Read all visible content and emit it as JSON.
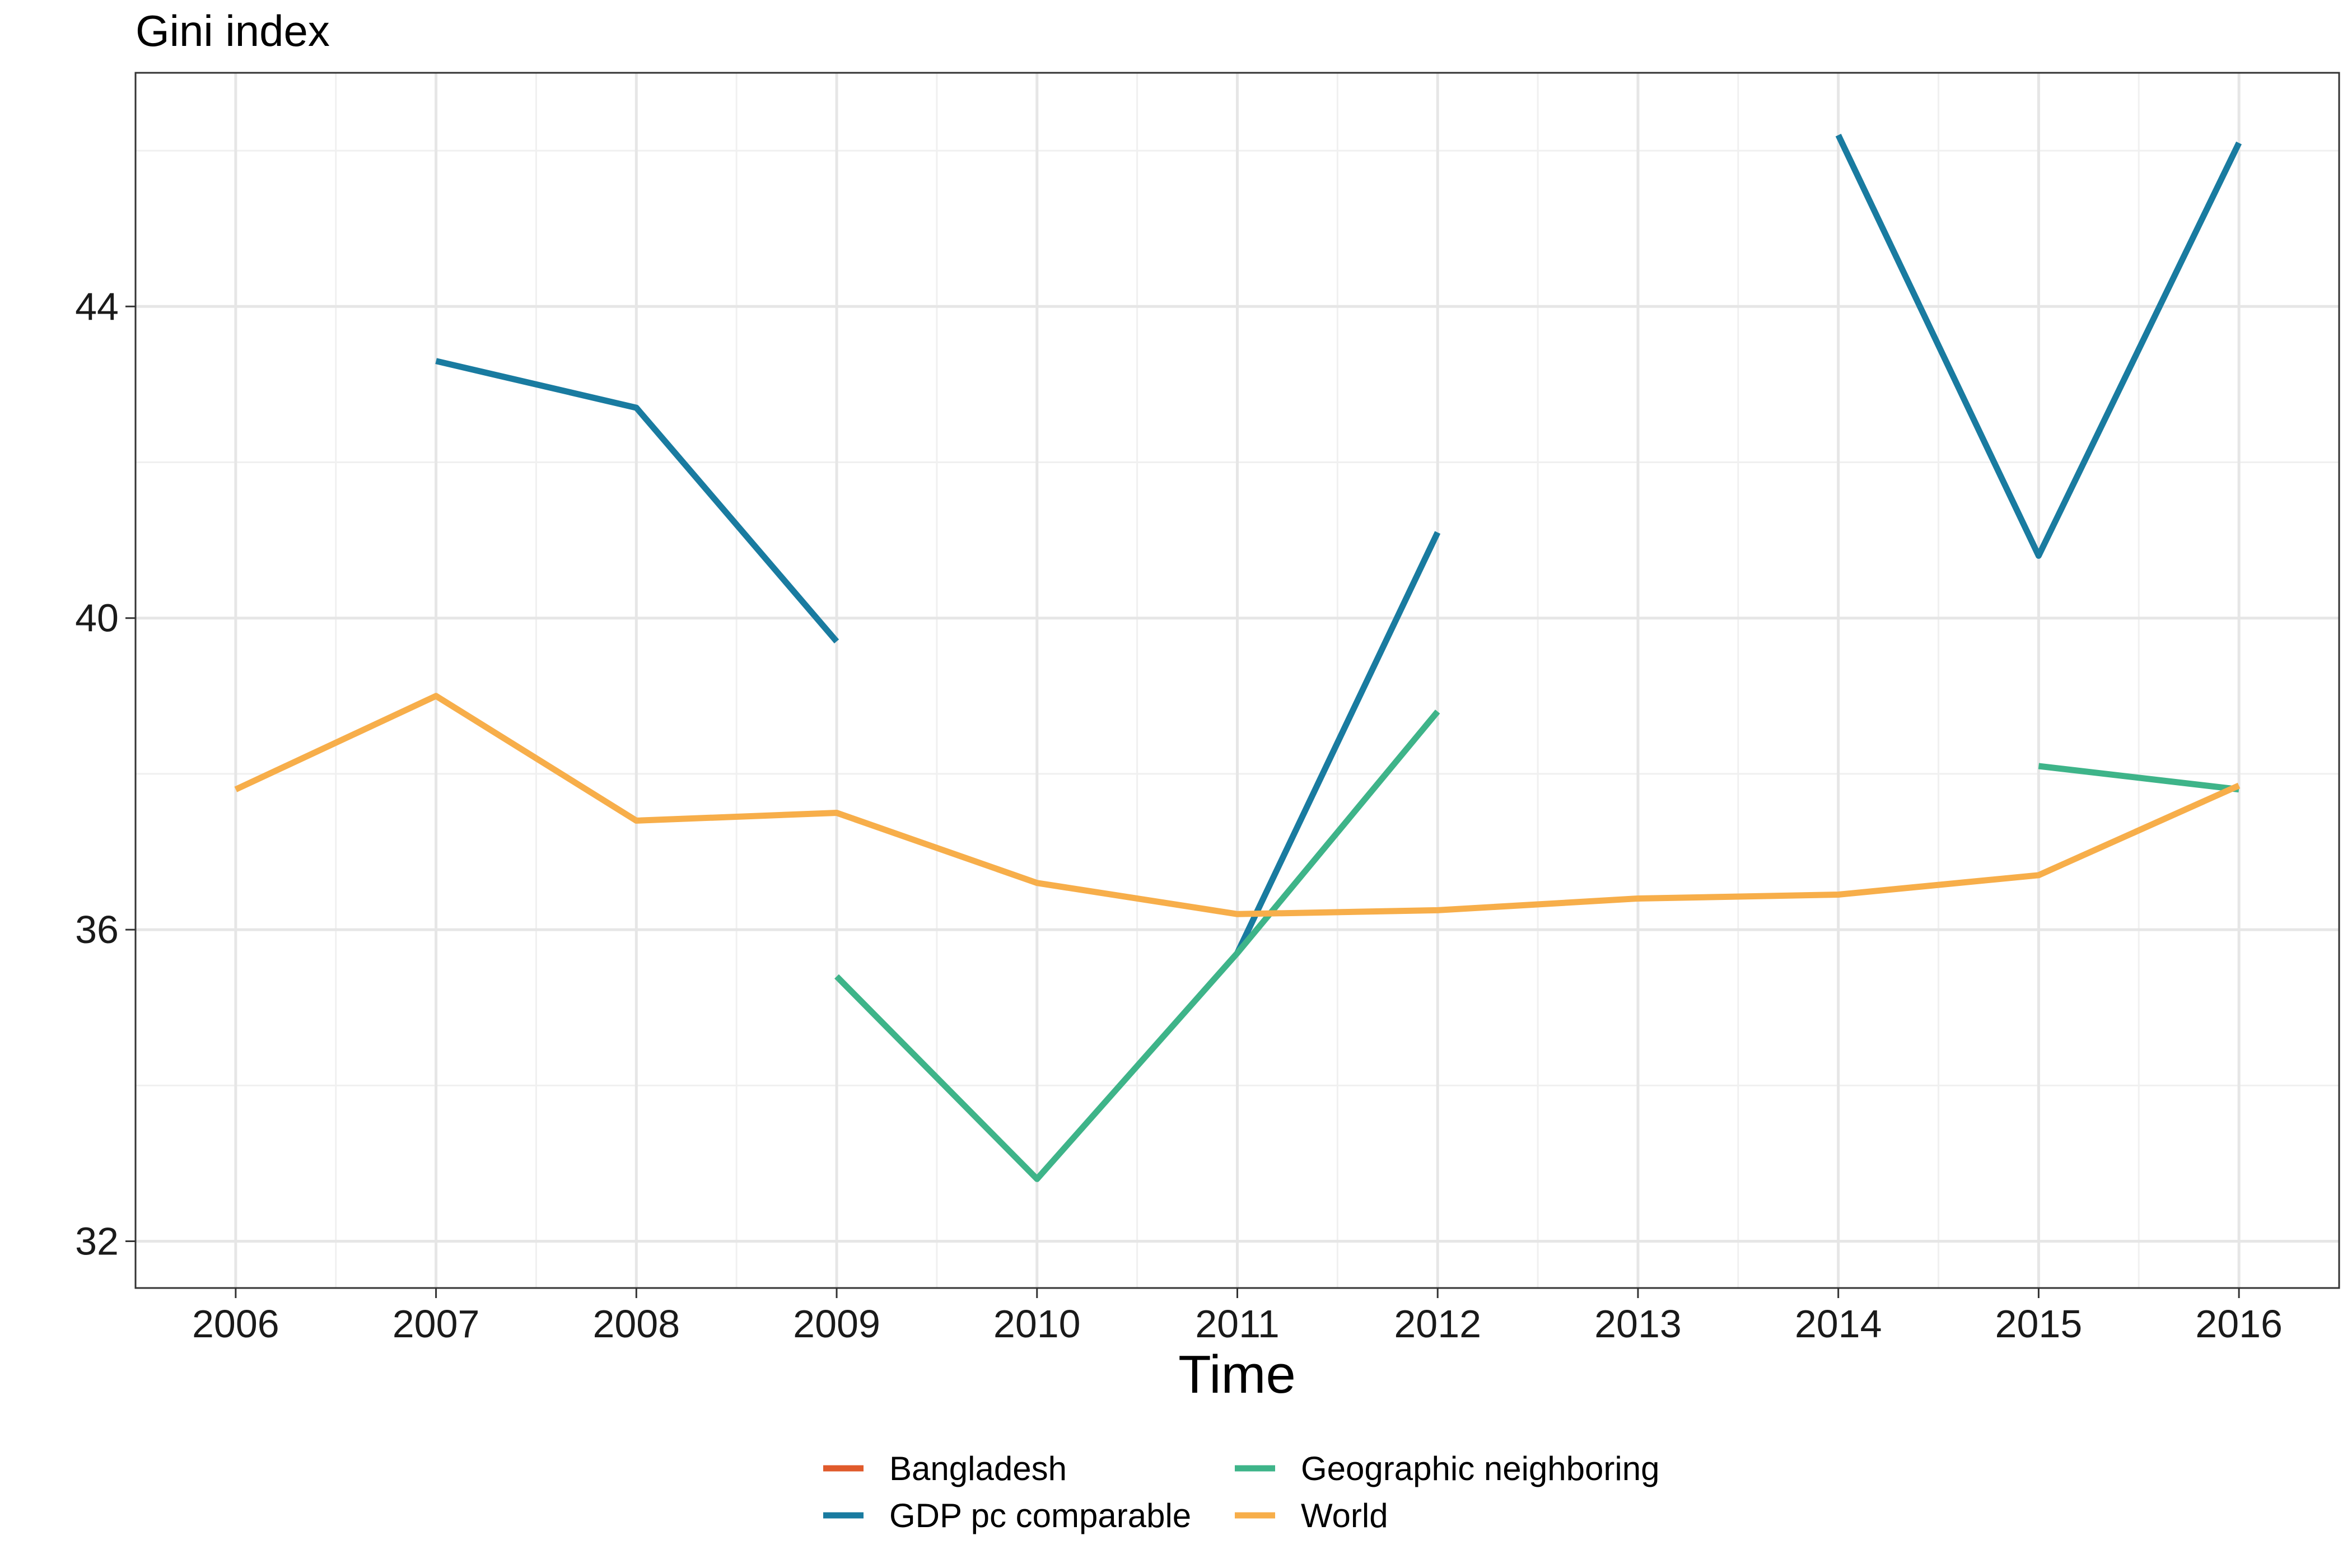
{
  "chart_data": {
    "type": "line",
    "title": "Gini index",
    "xlabel": "Time",
    "ylabel": "",
    "x": [
      2006,
      2007,
      2008,
      2009,
      2010,
      2011,
      2012,
      2013,
      2014,
      2015,
      2016
    ],
    "xlim": [
      2005.5,
      2016.5
    ],
    "ylim": [
      31.4,
      47.0
    ],
    "y_ticks": [
      32,
      36,
      40,
      44
    ],
    "grid": true,
    "legend_position": "bottom",
    "series": [
      {
        "name": "Bangladesh",
        "color": "#E05A2B",
        "values": [
          null,
          null,
          null,
          null,
          null,
          null,
          null,
          null,
          null,
          null,
          null
        ]
      },
      {
        "name": "GDP pc comparable",
        "color": "#197BA0",
        "values": [
          null,
          43.3,
          42.7,
          39.7,
          null,
          35.7,
          41.1,
          null,
          46.2,
          40.8,
          46.1
        ]
      },
      {
        "name": "Geographic neighboring",
        "color": "#3EB489",
        "values": [
          null,
          null,
          null,
          35.4,
          32.8,
          35.7,
          38.8,
          null,
          null,
          38.1,
          37.8
        ]
      },
      {
        "name": "World",
        "color": "#F7AE4A",
        "values": [
          37.8,
          39.0,
          37.4,
          37.5,
          36.6,
          36.2,
          36.25,
          36.4,
          36.45,
          36.7,
          37.85
        ]
      }
    ]
  }
}
